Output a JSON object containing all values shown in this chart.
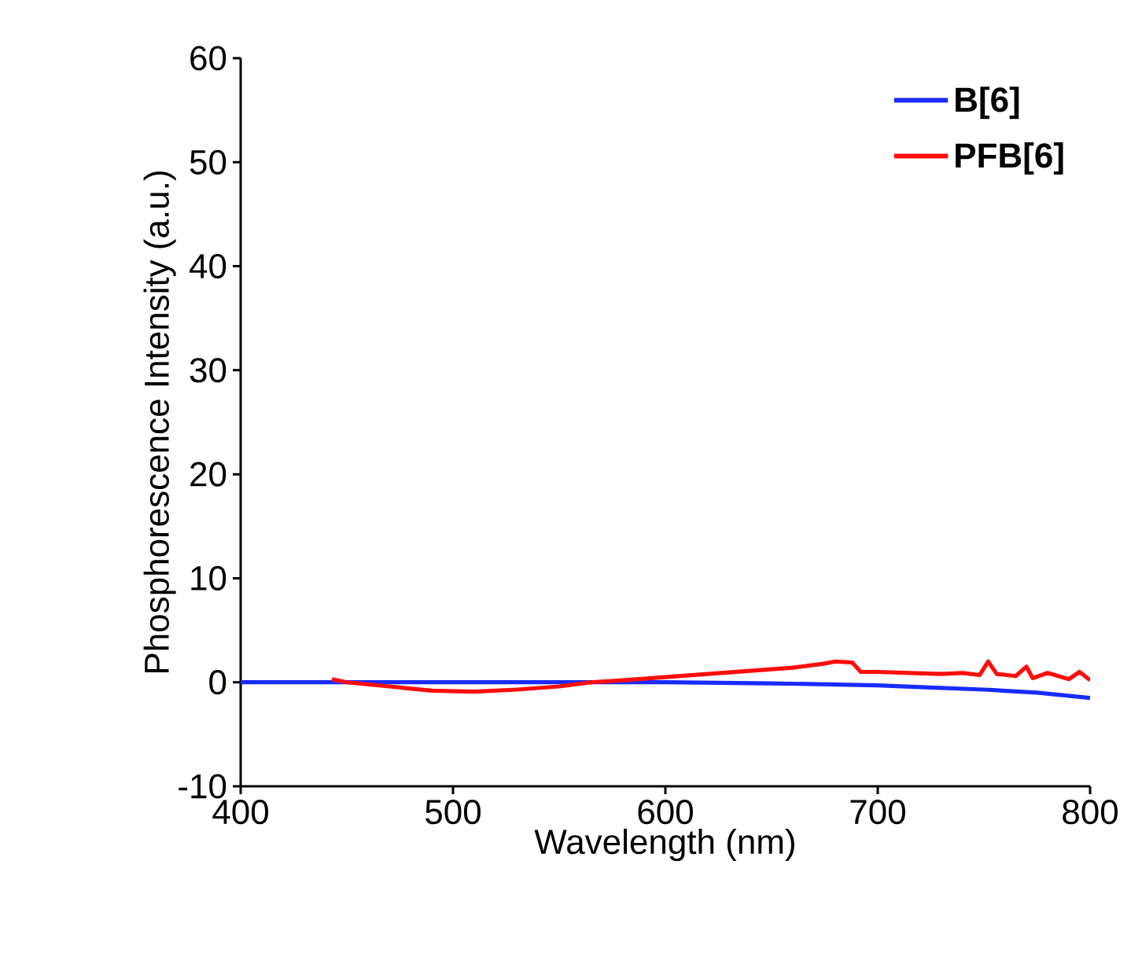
{
  "chart_data": {
    "type": "line",
    "xlabel": "Wavelength (nm)",
    "ylabel": "Phosphorescence Intensity (a.u.)",
    "xlim": [
      400,
      800
    ],
    "ylim": [
      -10,
      60
    ],
    "xticks": [
      400,
      500,
      600,
      700,
      800
    ],
    "yticks": [
      -10,
      0,
      10,
      20,
      30,
      40,
      50,
      60
    ],
    "legend": "top right",
    "grid": false,
    "marker": "none",
    "line_style": "solid",
    "series": [
      {
        "name": "B[6]",
        "color": "#1a2bff",
        "x": [
          400,
          450,
          500,
          550,
          600,
          650,
          675,
          700,
          725,
          750,
          775,
          800
        ],
        "values": [
          0,
          0,
          0,
          0,
          0,
          -0.1,
          -0.2,
          -0.3,
          -0.5,
          -0.7,
          -1.0,
          -1.5
        ]
      },
      {
        "name": "PFB[6]",
        "color": "#ff0d0d",
        "x": [
          443,
          450,
          470,
          490,
          510,
          530,
          550,
          565,
          580,
          600,
          620,
          640,
          660,
          675,
          680,
          688,
          692,
          700,
          715,
          730,
          740,
          748,
          752,
          756,
          765,
          770,
          773,
          780,
          790,
          795,
          800
        ],
        "values": [
          0.3,
          0,
          -0.4,
          -0.8,
          -0.9,
          -0.7,
          -0.4,
          0,
          0.2,
          0.5,
          0.8,
          1.1,
          1.4,
          1.8,
          2.0,
          1.9,
          1.0,
          1.0,
          0.9,
          0.8,
          0.9,
          0.7,
          2.0,
          0.8,
          0.6,
          1.5,
          0.4,
          0.9,
          0.3,
          1.0,
          0.2
        ]
      }
    ]
  }
}
